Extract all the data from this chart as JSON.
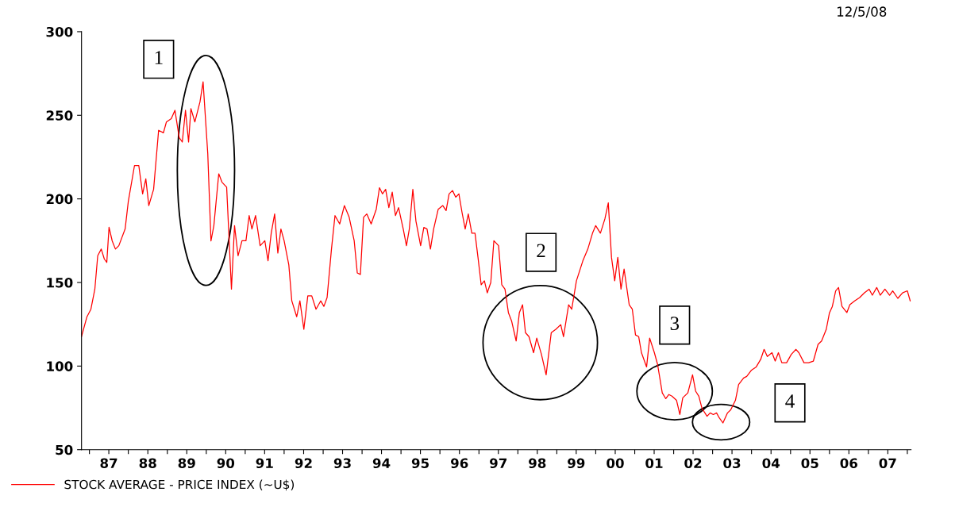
{
  "chart_data": {
    "type": "line",
    "x": [
      "1986-10-19",
      "1986-12-09",
      "1987-01-15",
      "1987-02-21",
      "1987-03-20",
      "1987-04-22",
      "1987-05-21",
      "1987-06-13",
      "1987-07-04",
      "1987-08-03",
      "1987-09-02",
      "1987-10-04",
      "1987-12-02",
      "1988-01-01",
      "1988-02-28",
      "1988-04-08",
      "1988-05-14",
      "1988-06-13",
      "1988-07-11",
      "1988-08-25",
      "1988-10-11",
      "1988-11-25",
      "1988-12-23",
      "1989-02-07",
      "1989-03-13",
      "1989-04-22",
      "1989-05-21",
      "1989-06-20",
      "1989-07-19",
      "1989-08-10",
      "1989-09-16",
      "1989-11-03",
      "1989-12-02",
      "1990-01-15",
      "1990-02-14",
      "1990-03-13",
      "1990-04-28",
      "1990-05-28",
      "1990-07-11",
      "1990-08-25",
      "1990-09-23",
      "1990-10-26",
      "1990-12-02",
      "1991-01-08",
      "1991-02-07",
      "1991-03-05",
      "1991-04-08",
      "1991-05-21",
      "1991-07-04",
      "1991-08-03",
      "1991-09-02",
      "1991-10-04",
      "1991-11-03",
      "1991-12-02",
      "1992-01-01",
      "1992-02-14",
      "1992-03-13",
      "1992-04-28",
      "1992-05-28",
      "1992-07-04",
      "1992-08-10",
      "1992-09-16",
      "1992-10-26",
      "1992-12-09",
      "1993-01-08",
      "1993-02-07",
      "1993-03-20",
      "1993-04-22",
      "1993-06-05",
      "1993-07-19",
      "1993-09-02",
      "1993-10-19",
      "1993-11-17",
      "1993-12-16",
      "1994-01-15",
      "1994-02-14",
      "1994-03-27",
      "1994-05-14",
      "1994-06-13",
      "1994-07-11",
      "1994-08-10",
      "1994-09-09",
      "1994-10-11",
      "1994-11-10",
      "1994-12-09",
      "1995-01-22",
      "1995-02-21",
      "1995-03-20",
      "1995-04-22",
      "1995-05-21",
      "1995-07-04",
      "1995-08-03",
      "1995-09-02",
      "1995-10-04",
      "1995-11-03",
      "1995-12-16",
      "1996-01-28",
      "1996-02-28",
      "1996-03-27",
      "1996-04-28",
      "1996-05-28",
      "1996-06-27",
      "1996-07-26",
      "1996-08-25",
      "1996-09-23",
      "1996-10-26",
      "1996-11-25",
      "1996-12-23",
      "1997-01-22",
      "1997-02-21",
      "1997-03-20",
      "1997-04-22",
      "1997-05-21",
      "1997-07-04",
      "1997-08-03",
      "1997-09-02",
      "1997-10-04",
      "1997-11-03",
      "1997-12-16",
      "1998-01-15",
      "1998-02-14",
      "1998-03-13",
      "1998-04-15",
      "1998-05-28",
      "1998-06-27",
      "1998-08-10",
      "1998-09-23",
      "1998-11-10",
      "1998-12-23",
      "1999-02-07",
      "1999-03-05",
      "1999-04-22",
      "1999-05-21",
      "1999-07-04",
      "1999-09-02",
      "1999-10-19",
      "1999-12-02",
      "2000-01-01",
      "2000-02-14",
      "2000-03-27",
      "2000-04-28",
      "2000-05-28",
      "2000-06-27",
      "2000-07-26",
      "2000-08-25",
      "2000-09-23",
      "2000-11-10",
      "2000-12-09",
      "2001-01-08",
      "2001-02-07",
      "2001-03-05",
      "2001-04-22",
      "2001-05-21",
      "2001-07-04",
      "2001-08-03",
      "2001-09-16",
      "2001-10-19",
      "2001-11-17",
      "2001-12-16",
      "2002-01-28",
      "2002-02-28",
      "2002-03-27",
      "2002-05-14",
      "2002-06-27",
      "2002-07-26",
      "2002-08-25",
      "2002-09-23",
      "2002-11-10",
      "2002-12-09",
      "2003-01-08",
      "2003-02-07",
      "2003-03-05",
      "2003-04-08",
      "2003-05-21",
      "2003-06-20",
      "2003-08-03",
      "2003-09-02",
      "2003-10-19",
      "2003-11-17",
      "2004-01-01",
      "2004-02-14",
      "2004-03-27",
      "2004-04-28",
      "2004-05-28",
      "2004-07-11",
      "2004-08-10",
      "2004-09-09",
      "2004-10-11",
      "2004-11-25",
      "2005-01-08",
      "2005-02-21",
      "2005-03-20",
      "2005-05-07",
      "2005-06-20",
      "2005-08-03",
      "2005-09-16",
      "2005-10-19",
      "2005-12-02",
      "2006-01-01",
      "2006-01-28",
      "2006-02-28",
      "2006-03-27",
      "2006-04-28",
      "2006-06-13",
      "2006-07-11",
      "2006-08-25",
      "2006-10-11",
      "2006-11-25",
      "2007-01-08",
      "2007-02-07",
      "2007-03-20",
      "2007-04-22",
      "2007-06-05",
      "2007-07-19",
      "2007-08-17",
      "2007-10-04",
      "2007-11-17",
      "2008-01-01",
      "2008-01-28"
    ],
    "series": [
      {
        "name": "STOCK AVERAGE - PRICE INDEX (~U$)",
        "color": "#ff0000",
        "values": [
          117.6,
          129.5,
          134,
          146,
          166,
          170,
          164,
          162,
          183,
          174.8,
          170,
          172,
          182,
          198.6,
          220,
          220,
          203,
          212,
          196,
          205.7,
          241,
          239.5,
          246,
          248,
          253,
          236.7,
          234,
          253,
          234,
          254,
          246,
          258,
          270,
          227,
          174.8,
          184,
          215,
          210,
          207,
          146,
          184,
          166,
          175,
          175,
          190,
          182,
          190,
          172,
          175,
          163,
          179.5,
          191,
          167.6,
          182,
          175,
          160.5,
          139,
          129.5,
          139,
          122,
          142,
          142,
          134,
          139,
          135.7,
          141,
          170,
          190,
          185,
          196,
          189,
          175,
          155.7,
          154.8,
          189,
          191,
          185,
          193.8,
          206.7,
          203,
          205.7,
          194.8,
          204,
          190,
          194.8,
          182,
          172,
          182,
          205.7,
          186.7,
          172,
          182.9,
          182,
          170,
          182,
          193.8,
          196,
          193,
          203,
          205,
          201,
          203,
          192,
          182,
          191,
          179.5,
          179.5,
          165,
          148.6,
          151,
          143.8,
          150,
          175,
          172,
          148.6,
          146,
          132,
          127,
          115,
          132,
          136.7,
          120,
          117.6,
          108,
          116.7,
          107,
          94.8,
          120,
          122,
          124.8,
          117.6,
          136.7,
          134,
          151,
          162.9,
          170,
          179.5,
          184,
          179.5,
          188,
          197.6,
          165,
          151,
          165,
          146,
          158,
          136.7,
          134,
          118.6,
          117.6,
          108,
          99.5,
          116.7,
          108,
          101,
          84,
          80.5,
          83,
          82,
          79.5,
          71,
          81,
          84,
          94.8,
          85,
          82,
          74.8,
          70,
          72,
          71,
          72,
          69,
          66,
          72,
          73.8,
          79.5,
          89,
          92.9,
          93.8,
          97.6,
          99.5,
          104,
          110,
          105.7,
          108,
          103,
          108,
          102,
          102,
          107,
          110,
          108,
          102,
          102,
          103,
          113,
          115,
          122,
          131.9,
          135.7,
          145,
          147,
          135.7,
          132,
          136.7,
          139,
          141,
          143.8,
          146,
          142.4,
          147,
          142.4,
          146,
          142.4,
          145,
          140.5,
          143.8,
          145,
          139
        ]
      }
    ],
    "xlim": [
      "1986-10-19",
      "2008-02-05"
    ],
    "ylim": [
      50,
      300
    ],
    "xticks": [
      {
        "value": "1987-01-01",
        "label": null
      },
      {
        "value": "1987-07-02",
        "label": "87"
      },
      {
        "value": "1988-01-01",
        "label": null
      },
      {
        "value": "1988-07-02",
        "label": "88"
      },
      {
        "value": "1989-01-01",
        "label": null
      },
      {
        "value": "1989-07-02",
        "label": "89"
      },
      {
        "value": "1990-01-01",
        "label": null
      },
      {
        "value": "1990-07-02",
        "label": "90"
      },
      {
        "value": "1991-01-01",
        "label": null
      },
      {
        "value": "1991-07-02",
        "label": "91"
      },
      {
        "value": "1992-01-01",
        "label": null
      },
      {
        "value": "1992-07-02",
        "label": "92"
      },
      {
        "value": "1993-01-01",
        "label": null
      },
      {
        "value": "1993-07-02",
        "label": "93"
      },
      {
        "value": "1994-01-01",
        "label": null
      },
      {
        "value": "1994-07-02",
        "label": "94"
      },
      {
        "value": "1995-01-01",
        "label": null
      },
      {
        "value": "1995-07-02",
        "label": "95"
      },
      {
        "value": "1996-01-01",
        "label": null
      },
      {
        "value": "1996-07-02",
        "label": "96"
      },
      {
        "value": "1997-01-01",
        "label": null
      },
      {
        "value": "1997-07-02",
        "label": "97"
      },
      {
        "value": "1998-01-01",
        "label": null
      },
      {
        "value": "1998-07-02",
        "label": "98"
      },
      {
        "value": "1999-01-01",
        "label": null
      },
      {
        "value": "1999-07-02",
        "label": "99"
      },
      {
        "value": "2000-01-01",
        "label": null
      },
      {
        "value": "2000-07-02",
        "label": "00"
      },
      {
        "value": "2001-01-01",
        "label": null
      },
      {
        "value": "2001-07-02",
        "label": "01"
      },
      {
        "value": "2002-01-01",
        "label": null
      },
      {
        "value": "2002-07-02",
        "label": "02"
      },
      {
        "value": "2003-01-01",
        "label": null
      },
      {
        "value": "2003-07-02",
        "label": "03"
      },
      {
        "value": "2004-01-01",
        "label": null
      },
      {
        "value": "2004-07-02",
        "label": "04"
      },
      {
        "value": "2005-01-01",
        "label": null
      },
      {
        "value": "2005-07-02",
        "label": "05"
      },
      {
        "value": "2006-01-01",
        "label": null
      },
      {
        "value": "2006-07-02",
        "label": "06"
      },
      {
        "value": "2007-01-01",
        "label": null
      },
      {
        "value": "2007-07-02",
        "label": "07"
      },
      {
        "value": "2008-01-01",
        "label": null
      }
    ],
    "yticks": [
      50,
      100,
      150,
      200,
      250,
      300
    ],
    "grid": false,
    "legend": "bottom left",
    "marker": "none",
    "line_style": "solid",
    "annotations": [
      "12/5/08",
      "1",
      "2",
      "3",
      "4"
    ]
  }
}
